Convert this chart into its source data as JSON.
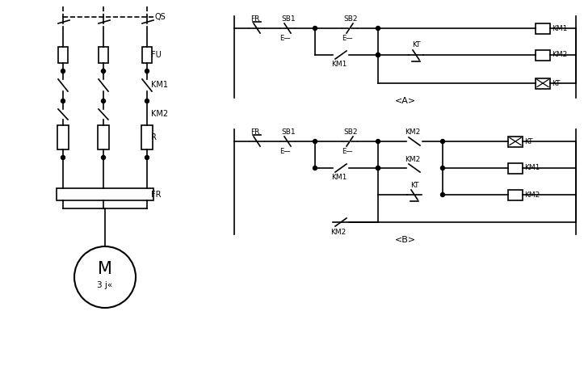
{
  "bg_color": "#ffffff",
  "line_color": "#000000",
  "line_width": 1.2,
  "title_A": "<A>",
  "title_B": "<B>",
  "motor_label": "M",
  "motor_sublabel": "3 j«"
}
